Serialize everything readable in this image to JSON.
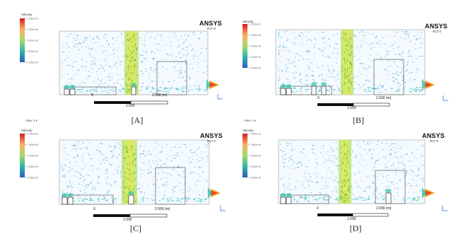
{
  "panels": [
    {
      "caption": "[A]",
      "brand": "ANSYS",
      "brand_sub": "R17.0",
      "legend_ticks": [
        "1.000e+01",
        "7.500e+00",
        "5.000e+00",
        "2.500e+00",
        "0.000e+00"
      ],
      "scale_labels": {
        "start": "0",
        "mid": "2.000 (m)",
        "bottom": "1.000"
      },
      "ui_row": "",
      "jet_width": "wide"
    },
    {
      "caption": "[B]",
      "brand": "ANSYS",
      "brand_sub": "R17.0",
      "legend_ticks": [
        "1.000e+01",
        "7.500e+00",
        "5.000e+00",
        "2.500e+00",
        "0.000e+00"
      ],
      "scale_labels": {
        "start": "0",
        "mid": "2.000 (m)",
        "bottom": "1.000"
      },
      "ui_row": "",
      "jet_width": "narrow"
    },
    {
      "caption": "[C]",
      "brand": "ANSYS",
      "brand_sub": "R17.0",
      "legend_ticks": [
        "1.000e+01",
        "7.500e+00",
        "5.000e+00",
        "2.500e+00",
        "0.000e+00"
      ],
      "scale_labels": {
        "start": "0",
        "mid": "2.000 (m)",
        "bottom": "1.000"
      },
      "ui_row": "View 1  ▾",
      "jet_width": "wide"
    },
    {
      "caption": "[D]",
      "brand": "ANSYS",
      "brand_sub": "R17.0",
      "legend_ticks": [
        "1.000e+01",
        "7.500e+00",
        "5.000e+00",
        "2.500e+00",
        "0.000e+00"
      ],
      "scale_labels": {
        "start": "0",
        "mid": "2.000 (m)",
        "bottom": "1.000"
      },
      "ui_row": "View 1  ▾",
      "jet_width": "narrow"
    }
  ],
  "colors": {
    "vector_blue": "#4aa0dd",
    "vector_light": "#9fd3f0",
    "jet_green": "#8fd23a",
    "jet_yellow": "#dfe83b",
    "inlet_red": "#e8401e",
    "inlet_orange": "#f39a1e",
    "box_stroke": "#6f6f6f"
  }
}
